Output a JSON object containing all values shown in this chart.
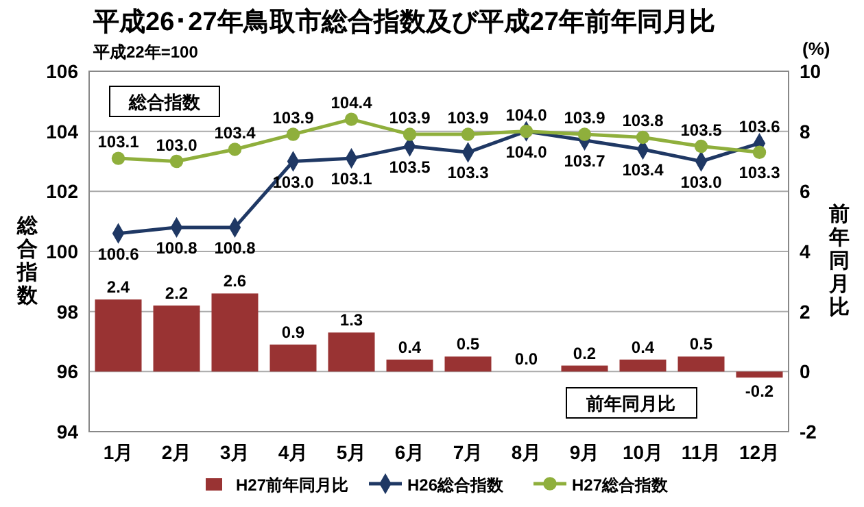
{
  "chart_data": {
    "type": "bar",
    "title": "平成26･27年鳥取市総合指数及び平成27年前年同月比",
    "subtitle": "平成22年=100",
    "ylabel": "総合指数",
    "y2label": "前年同月比",
    "annotations": [
      "(%)",
      "総合指数",
      "前年同月比"
    ],
    "categories": [
      "1月",
      "2月",
      "3月",
      "4月",
      "5月",
      "6月",
      "7月",
      "8月",
      "9月",
      "10月",
      "11月",
      "12月"
    ],
    "ylim": [
      94,
      106
    ],
    "yticks": [
      94,
      96,
      98,
      100,
      102,
      104,
      106
    ],
    "y2lim": [
      -2,
      10
    ],
    "y2ticks": [
      -2,
      0,
      2,
      4,
      6,
      8,
      10
    ],
    "grid": "y",
    "legend": "bottom",
    "series": [
      {
        "name": "H27前年同月比",
        "axis": "y2",
        "color": "#993333",
        "values": [
          2.4,
          2.2,
          2.6,
          0.9,
          1.3,
          0.4,
          0.5,
          0.0,
          0.2,
          0.4,
          0.5,
          -0.2
        ],
        "value_labels": [
          "2.4",
          "2.2",
          "2.6",
          "0.9",
          "1.3",
          "0.4",
          "0.5",
          "0.0",
          "0.2",
          "0.4",
          "0.5",
          "-0.2"
        ]
      },
      {
        "name": "H26総合指数",
        "type": "line",
        "color": "#1f3864",
        "marker": "diamond",
        "values": [
          100.6,
          100.8,
          100.8,
          103.0,
          103.1,
          103.5,
          103.3,
          104.0,
          103.7,
          103.4,
          103.0,
          103.6
        ],
        "value_labels": [
          "100.6",
          "100.8",
          "100.8",
          "103.0",
          "103.1",
          "103.5",
          "103.3",
          "104.0",
          "103.7",
          "103.4",
          "103.0",
          "103.6"
        ]
      },
      {
        "name": "H27総合指数",
        "type": "line",
        "color": "#8faf3c",
        "marker": "circle",
        "values": [
          103.1,
          103.0,
          103.4,
          103.9,
          104.4,
          103.9,
          103.9,
          104.0,
          103.9,
          103.8,
          103.5,
          103.3
        ],
        "value_labels": [
          "103.1",
          "103.0",
          "103.4",
          "103.9",
          "104.4",
          "103.9",
          "103.9",
          "104.0",
          "103.9",
          "103.8",
          "103.5",
          "103.3"
        ]
      }
    ]
  }
}
